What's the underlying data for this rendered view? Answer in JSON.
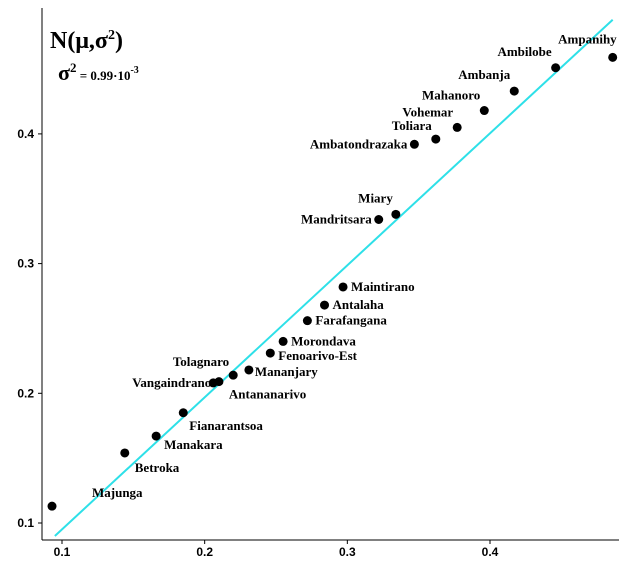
{
  "chart_data": {
    "type": "scatter",
    "title": "N(μ,σ²)",
    "subtitle": "σ² = 0.99·10⁻³",
    "title_parts": {
      "base": "N(μ,σ",
      "exp": "2",
      "close": ")"
    },
    "subtitle_parts": {
      "sym": "σ",
      "exp": "2",
      "mid": " = 0.99·10",
      "exp2": "-3"
    },
    "xlabel": "",
    "ylabel": "",
    "xlim": [
      0.09,
      0.49
    ],
    "ylim": [
      0.093,
      0.49
    ],
    "xticks": [
      "0.1",
      "0.2",
      "0.3",
      "0.4"
    ],
    "yticks": [
      "0.1",
      "0.2",
      "0.3",
      "0.4"
    ],
    "line": {
      "color": "#2ee0e8",
      "from": [
        0.095,
        0.09
      ],
      "to": [
        0.486,
        0.488
      ]
    },
    "point_color": "#000000",
    "points": [
      {
        "label": "Majunga",
        "x": 0.093,
        "y": 0.113
      },
      {
        "label": "Betroka",
        "x": 0.144,
        "y": 0.154
      },
      {
        "label": "Manakara",
        "x": 0.166,
        "y": 0.167
      },
      {
        "label": "Fianarantsoa",
        "x": 0.185,
        "y": 0.185
      },
      {
        "label": "Vangaindrano",
        "x": 0.206,
        "y": 0.208
      },
      {
        "label": "Antananarivo",
        "x": 0.21,
        "y": 0.209
      },
      {
        "label": "Tolagnaro",
        "x": 0.22,
        "y": 0.214
      },
      {
        "label": "Mananjary",
        "x": 0.231,
        "y": 0.218
      },
      {
        "label": "Fenoarivo-Est",
        "x": 0.246,
        "y": 0.231
      },
      {
        "label": "Morondava",
        "x": 0.255,
        "y": 0.24
      },
      {
        "label": "Farafangana",
        "x": 0.272,
        "y": 0.256
      },
      {
        "label": "Antalaha",
        "x": 0.284,
        "y": 0.268
      },
      {
        "label": "Maintirano",
        "x": 0.297,
        "y": 0.282
      },
      {
        "label": "Mandritsara",
        "x": 0.322,
        "y": 0.334
      },
      {
        "label": "Miary",
        "x": 0.334,
        "y": 0.338
      },
      {
        "label": "Ambatondrazaka",
        "x": 0.347,
        "y": 0.392
      },
      {
        "label": "Toliara",
        "x": 0.362,
        "y": 0.396
      },
      {
        "label": "Vohemar",
        "x": 0.377,
        "y": 0.405
      },
      {
        "label": "Mahanoro",
        "x": 0.396,
        "y": 0.418
      },
      {
        "label": "Ambanja",
        "x": 0.417,
        "y": 0.433
      },
      {
        "label": "Ambilobe",
        "x": 0.446,
        "y": 0.451
      },
      {
        "label": "Ampanihy",
        "x": 0.486,
        "y": 0.459
      }
    ]
  }
}
